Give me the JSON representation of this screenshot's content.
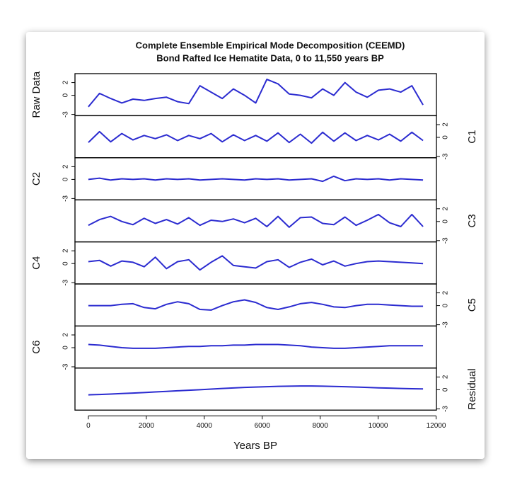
{
  "chart_data": {
    "type": "line",
    "title": "Complete Ensemble Empirical Mode Decomposition (CEEMD)",
    "subtitle": "Bond Rafted Ice Hematite Data, 0 to 11,550 years BP",
    "x_label": "Years BP",
    "x": [
      0,
      385,
      770,
      1155,
      1540,
      1925,
      2310,
      2695,
      3080,
      3465,
      3850,
      4235,
      4620,
      5005,
      5390,
      5775,
      6160,
      6545,
      6930,
      7315,
      7700,
      8085,
      8470,
      8855,
      9240,
      9625,
      10010,
      10395,
      10780,
      11165,
      11550
    ],
    "xlim": [
      -462,
      12012
    ],
    "xticks": [
      0,
      2000,
      4000,
      6000,
      8000,
      10000,
      12000
    ],
    "ylim": [
      -3.2,
      3.4
    ],
    "yticks": [
      -3,
      0,
      2
    ],
    "series": [
      {
        "name": "Raw Data",
        "color": "#2b2bd0",
        "values": [
          -1.8,
          0.3,
          -0.5,
          -1.2,
          -0.6,
          -0.8,
          -0.5,
          -0.3,
          -1.0,
          -1.3,
          1.5,
          0.5,
          -0.5,
          1.0,
          0.0,
          -1.2,
          2.5,
          1.8,
          0.2,
          0.0,
          -0.4,
          1.0,
          0.0,
          2.0,
          0.5,
          -0.3,
          0.8,
          1.0,
          0.5,
          1.5,
          -1.5
        ]
      },
      {
        "name": "C1",
        "color": "#2b2bd0",
        "values": [
          -0.8,
          0.9,
          -0.7,
          0.6,
          -0.4,
          0.3,
          -0.2,
          0.4,
          -0.5,
          0.3,
          -0.2,
          0.6,
          -0.7,
          0.4,
          -0.5,
          0.3,
          -0.6,
          0.7,
          -0.8,
          0.5,
          -0.9,
          0.8,
          -0.6,
          0.7,
          -0.5,
          0.3,
          -0.4,
          0.5,
          -0.6,
          0.8,
          -0.5
        ]
      },
      {
        "name": "C2",
        "color": "#2b2bd0",
        "values": [
          0,
          0.2,
          -0.1,
          0.1,
          0,
          0.1,
          -0.1,
          0.1,
          0,
          0.1,
          -0.1,
          0,
          0.1,
          0,
          -0.1,
          0.1,
          0,
          0.1,
          -0.1,
          0,
          0.1,
          -0.3,
          0.5,
          -0.2,
          0.1,
          0,
          0.1,
          -0.1,
          0.1,
          0,
          -0.1
        ]
      },
      {
        "name": "C3",
        "color": "#2b2bd0",
        "values": [
          -0.6,
          0.3,
          0.8,
          0,
          -0.5,
          0.5,
          -0.3,
          0.3,
          -0.4,
          0.6,
          -0.6,
          0.2,
          0,
          0.4,
          -0.2,
          0.5,
          -0.8,
          0.8,
          -0.9,
          0.6,
          0.7,
          -0.3,
          -0.5,
          0.7,
          -0.6,
          0.2,
          1.1,
          -0.2,
          -0.8,
          1.1,
          -0.8
        ]
      },
      {
        "name": "C4",
        "color": "#2b2bd0",
        "values": [
          0.3,
          0.5,
          -0.4,
          0.4,
          0.2,
          -0.5,
          1.0,
          -0.8,
          0.3,
          0.6,
          -1.0,
          0.2,
          1.2,
          -0.3,
          -0.5,
          -0.7,
          0.3,
          0.6,
          -0.6,
          0.2,
          0.7,
          -0.2,
          0.4,
          -0.4,
          0,
          0.3,
          0.4,
          0.3,
          0.2,
          0.1,
          0
        ]
      },
      {
        "name": "C5",
        "color": "#2b2bd0",
        "values": [
          0,
          0,
          0,
          0.2,
          0.3,
          -0.3,
          -0.5,
          0.2,
          0.6,
          0.3,
          -0.6,
          -0.7,
          0,
          0.6,
          0.9,
          0.5,
          -0.3,
          -0.6,
          -0.2,
          0.3,
          0.5,
          0.2,
          -0.2,
          -0.3,
          0,
          0.2,
          0.2,
          0.1,
          0,
          -0.1,
          -0.1
        ]
      },
      {
        "name": "C6",
        "color": "#2b2bd0",
        "values": [
          0.5,
          0.4,
          0.2,
          0,
          -0.1,
          -0.1,
          -0.1,
          0,
          0.1,
          0.2,
          0.2,
          0.3,
          0.3,
          0.4,
          0.4,
          0.5,
          0.5,
          0.5,
          0.4,
          0.3,
          0.1,
          0,
          -0.1,
          -0.1,
          0,
          0.1,
          0.2,
          0.3,
          0.3,
          0.3,
          0.3
        ]
      },
      {
        "name": "Residual",
        "color": "#2b2bd0",
        "values": [
          -0.8,
          -0.75,
          -0.68,
          -0.6,
          -0.52,
          -0.44,
          -0.35,
          -0.26,
          -0.17,
          -0.08,
          0.0,
          0.1,
          0.2,
          0.28,
          0.36,
          0.42,
          0.48,
          0.53,
          0.56,
          0.58,
          0.58,
          0.56,
          0.52,
          0.47,
          0.42,
          0.36,
          0.3,
          0.25,
          0.2,
          0.16,
          0.13
        ]
      }
    ]
  }
}
